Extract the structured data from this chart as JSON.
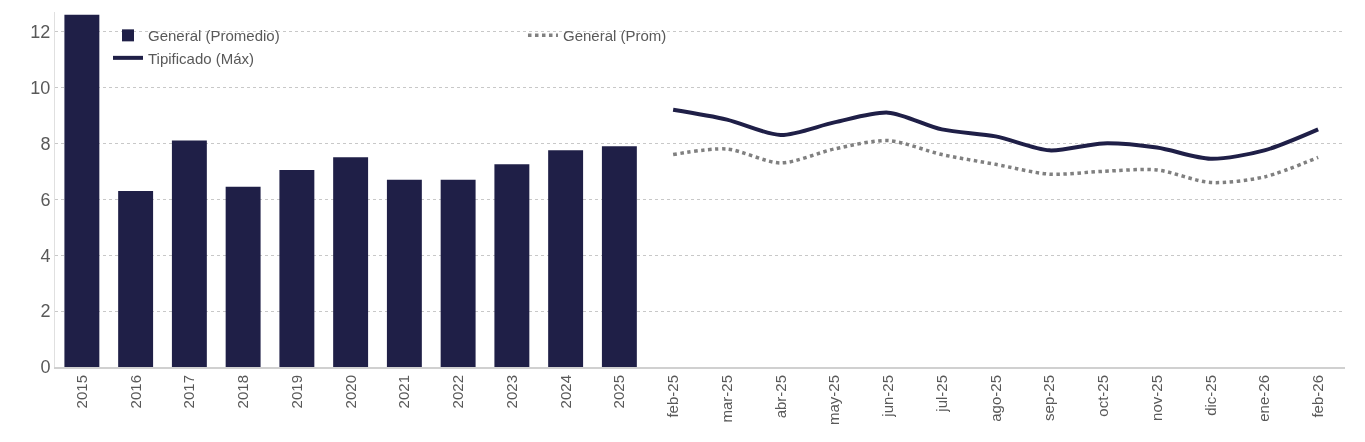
{
  "chart_data": {
    "type": "bar",
    "categories": [
      "2015",
      "2016",
      "2017",
      "2018",
      "2019",
      "2020",
      "2021",
      "2022",
      "2023",
      "2024",
      "2025",
      "feb-25",
      "mar-25",
      "abr-25",
      "may-25",
      "jun-25",
      "jul-25",
      "ago-25",
      "sep-25",
      "oct-25",
      "nov-25",
      "dic-25",
      "ene-26",
      "feb-26"
    ],
    "series": [
      {
        "name": "General (Promedio)",
        "color": "#1f1f47",
        "values": [
          12.6,
          6.3,
          8.1,
          6.45,
          7.05,
          7.5,
          6.7,
          6.7,
          7.25,
          7.75,
          7.9,
          null,
          null,
          null,
          null,
          null,
          null,
          null,
          null,
          null,
          null,
          null,
          null,
          null
        ]
      },
      {
        "name": "General (Prom)",
        "type": "line",
        "color": "#808080",
        "line_style": "dotted",
        "values": [
          null,
          null,
          null,
          null,
          null,
          null,
          null,
          null,
          null,
          null,
          null,
          7.6,
          7.8,
          7.3,
          7.8,
          8.1,
          7.6,
          7.25,
          6.9,
          7.0,
          7.05,
          6.6,
          6.8,
          7.5
        ]
      },
      {
        "name": "Tipificado (Máx)",
        "type": "line",
        "color": "#1f1f47",
        "line_style": "solid",
        "values": [
          null,
          null,
          null,
          null,
          null,
          null,
          null,
          null,
          null,
          null,
          null,
          9.2,
          8.85,
          8.3,
          8.75,
          9.1,
          8.5,
          8.25,
          7.75,
          8.0,
          7.85,
          7.45,
          7.75,
          8.5
        ]
      }
    ],
    "ylim": [
      0,
      12.7
    ],
    "yticks": [
      0,
      2,
      4,
      6,
      8,
      10,
      12
    ],
    "grid": "y",
    "legend": "top",
    "marker": "none"
  }
}
